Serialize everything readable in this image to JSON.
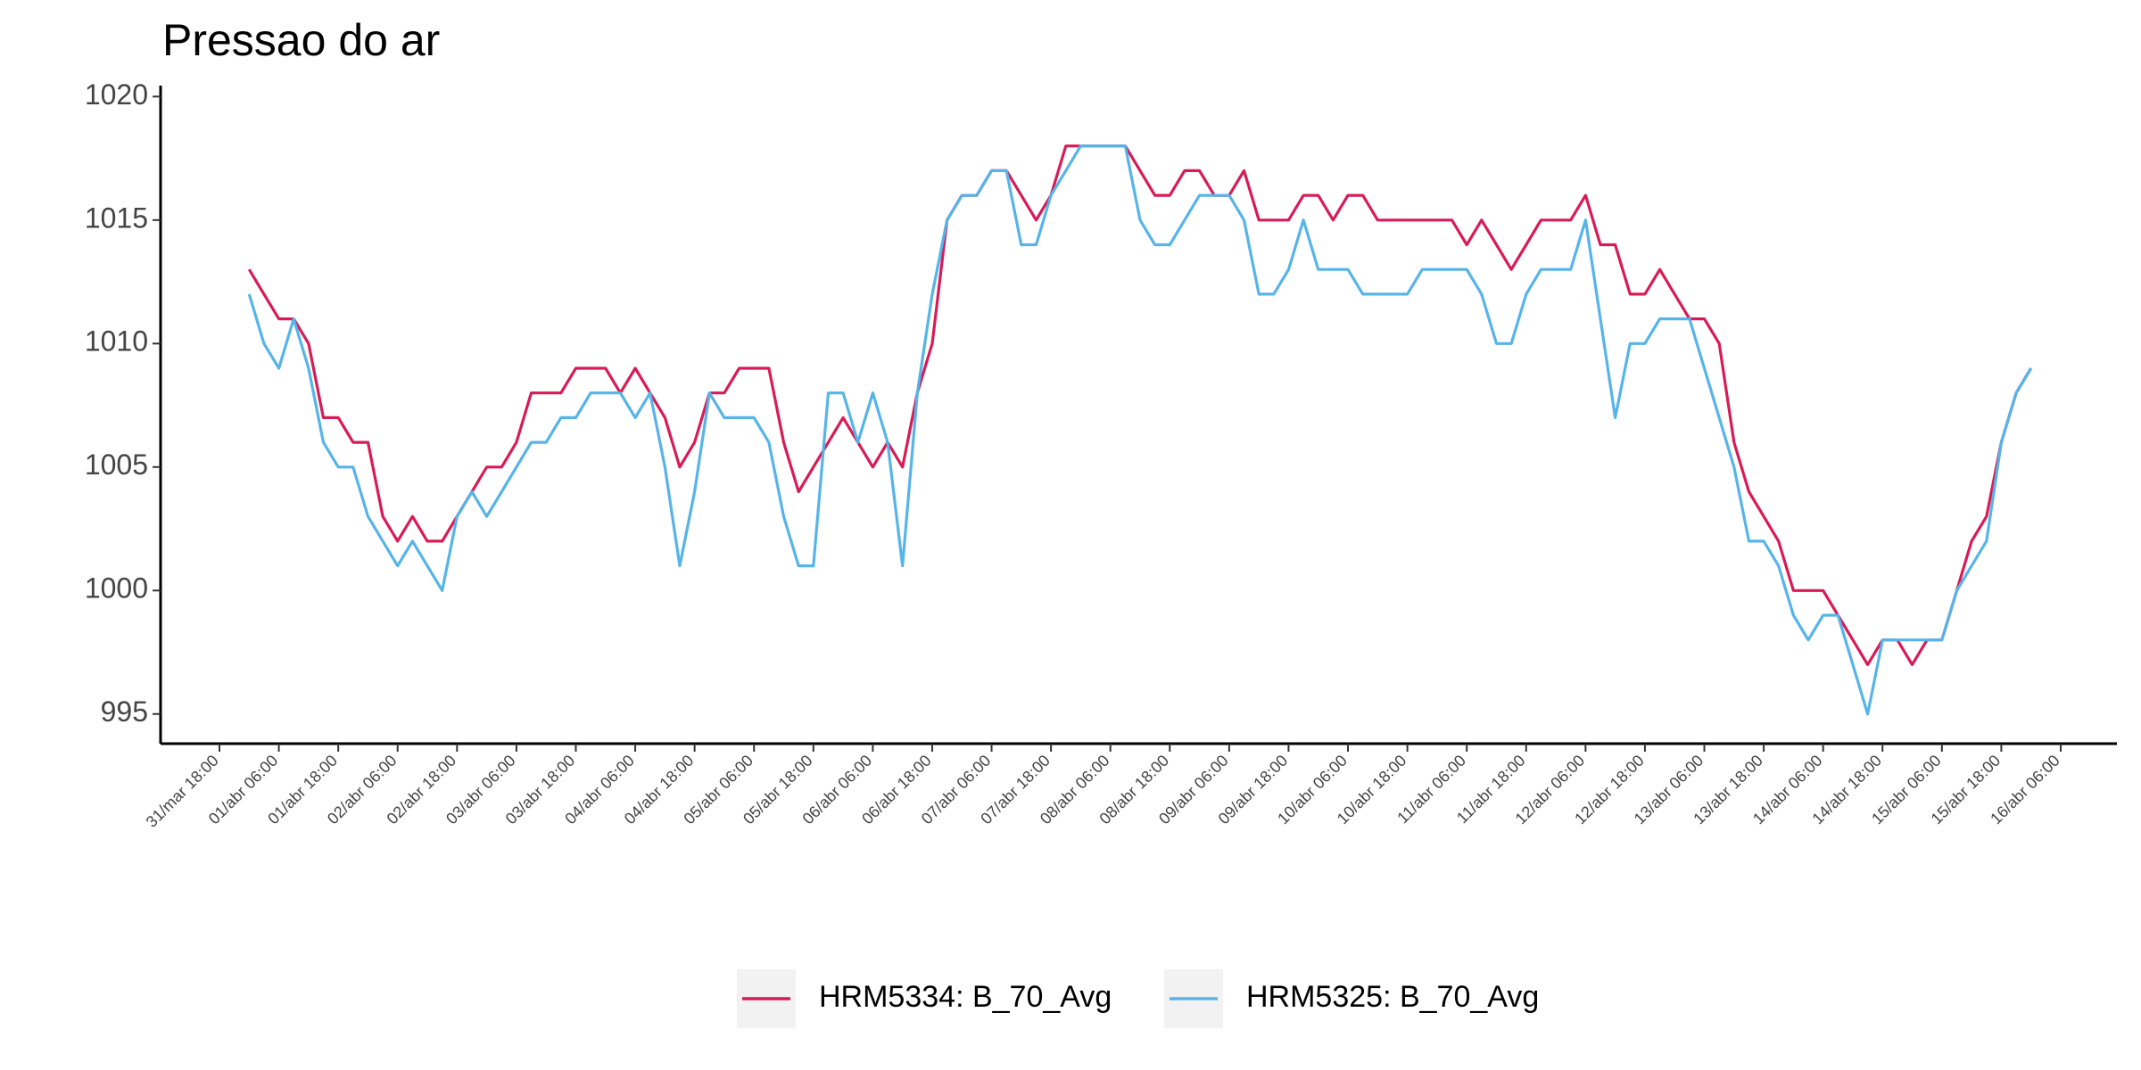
{
  "chart_data": {
    "type": "line",
    "title": "Pressao do ar",
    "x": [
      "31/mar 18:00",
      "31/mar 21:00",
      "01/abr 00:00",
      "01/abr 03:00",
      "01/abr 06:00",
      "01/abr 09:00",
      "01/abr 12:00",
      "01/abr 15:00",
      "01/abr 18:00",
      "01/abr 21:00",
      "02/abr 00:00",
      "02/abr 03:00",
      "02/abr 06:00",
      "02/abr 09:00",
      "02/abr 12:00",
      "02/abr 15:00",
      "02/abr 18:00",
      "02/abr 21:00",
      "03/abr 00:00",
      "03/abr 03:00",
      "03/abr 06:00",
      "03/abr 09:00",
      "03/abr 12:00",
      "03/abr 15:00",
      "03/abr 18:00",
      "03/abr 21:00",
      "04/abr 00:00",
      "04/abr 03:00",
      "04/abr 06:00",
      "04/abr 09:00",
      "04/abr 12:00",
      "04/abr 15:00",
      "04/abr 18:00",
      "04/abr 21:00",
      "05/abr 00:00",
      "05/abr 03:00",
      "05/abr 06:00",
      "05/abr 09:00",
      "05/abr 12:00",
      "05/abr 15:00",
      "05/abr 18:00",
      "05/abr 21:00",
      "06/abr 00:00",
      "06/abr 03:00",
      "06/abr 06:00",
      "06/abr 09:00",
      "06/abr 12:00",
      "06/abr 15:00",
      "06/abr 18:00",
      "06/abr 21:00",
      "07/abr 00:00",
      "07/abr 03:00",
      "07/abr 06:00",
      "07/abr 09:00",
      "07/abr 12:00",
      "07/abr 15:00",
      "07/abr 18:00",
      "07/abr 21:00",
      "08/abr 00:00",
      "08/abr 03:00",
      "08/abr 06:00",
      "08/abr 09:00",
      "08/abr 12:00",
      "08/abr 15:00",
      "08/abr 18:00",
      "08/abr 21:00",
      "09/abr 00:00",
      "09/abr 03:00",
      "09/abr 06:00",
      "09/abr 09:00",
      "09/abr 12:00",
      "09/abr 15:00",
      "09/abr 18:00",
      "09/abr 21:00",
      "10/abr 00:00",
      "10/abr 03:00",
      "10/abr 06:00",
      "10/abr 09:00",
      "10/abr 12:00",
      "10/abr 15:00",
      "10/abr 18:00",
      "10/abr 21:00",
      "11/abr 00:00",
      "11/abr 03:00",
      "11/abr 06:00",
      "11/abr 09:00",
      "11/abr 12:00",
      "11/abr 15:00",
      "11/abr 18:00",
      "11/abr 21:00",
      "12/abr 00:00",
      "12/abr 03:00",
      "12/abr 06:00",
      "12/abr 09:00",
      "12/abr 12:00",
      "12/abr 15:00",
      "12/abr 18:00",
      "12/abr 21:00",
      "13/abr 00:00",
      "13/abr 03:00",
      "13/abr 06:00",
      "13/abr 09:00",
      "13/abr 12:00",
      "13/abr 15:00",
      "13/abr 18:00",
      "13/abr 21:00",
      "14/abr 00:00",
      "14/abr 03:00",
      "14/abr 06:00",
      "14/abr 09:00",
      "14/abr 12:00",
      "14/abr 15:00",
      "14/abr 18:00",
      "14/abr 21:00",
      "15/abr 00:00",
      "15/abr 03:00",
      "15/abr 06:00",
      "15/abr 09:00",
      "15/abr 12:00",
      "15/abr 15:00",
      "15/abr 18:00",
      "15/abr 21:00",
      "16/abr 00:00",
      "16/abr 03:00",
      "16/abr 06:00"
    ],
    "series": [
      {
        "name": "HRM5334: B_70_Avg",
        "color": "#d81b56",
        "values": [
          null,
          null,
          1013,
          1012,
          1011,
          1011,
          1010,
          1007,
          1007,
          1006,
          1006,
          1003,
          1002,
          1003,
          1002,
          1002,
          1003,
          1004,
          1005,
          1005,
          1006,
          1008,
          1008,
          1008,
          1009,
          1009,
          1009,
          1008,
          1009,
          1008,
          1007,
          1005,
          1006,
          1008,
          1008,
          1009,
          1009,
          1009,
          1006,
          1004,
          1005,
          1006,
          1007,
          1006,
          1005,
          1006,
          1005,
          1008,
          1010,
          1015,
          1016,
          1016,
          1017,
          1017,
          1016,
          1015,
          1016,
          1018,
          1018,
          1018,
          1018,
          1018,
          1017,
          1016,
          1016,
          1017,
          1017,
          1016,
          1016,
          1017,
          1015,
          1015,
          1015,
          1016,
          1016,
          1015,
          1016,
          1016,
          1015,
          1015,
          1015,
          1015,
          1015,
          1015,
          1014,
          1015,
          1014,
          1013,
          1014,
          1015,
          1015,
          1015,
          1016,
          1014,
          1014,
          1012,
          1012,
          1013,
          1012,
          1011,
          1011,
          1010,
          1006,
          1004,
          1003,
          1002,
          1000,
          1000,
          1000,
          999,
          998,
          997,
          998,
          998,
          997,
          998,
          998,
          1000,
          1002,
          1003,
          1006,
          1008,
          1009,
          null,
          null
        ]
      },
      {
        "name": "HRM5325: B_70_Avg",
        "color": "#56b4e9",
        "values": [
          null,
          null,
          1012,
          1010,
          1009,
          1011,
          1009,
          1006,
          1005,
          1005,
          1003,
          1002,
          1001,
          1002,
          1001,
          1000,
          1003,
          1004,
          1003,
          1004,
          1005,
          1006,
          1006,
          1007,
          1007,
          1008,
          1008,
          1008,
          1007,
          1008,
          1005,
          1001,
          1004,
          1008,
          1007,
          1007,
          1007,
          1006,
          1003,
          1001,
          1001,
          1008,
          1008,
          1006,
          1008,
          1006,
          1001,
          1008,
          1012,
          1015,
          1016,
          1016,
          1017,
          1017,
          1014,
          1014,
          1016,
          1017,
          1018,
          1018,
          1018,
          1018,
          1015,
          1014,
          1014,
          1015,
          1016,
          1016,
          1016,
          1015,
          1012,
          1012,
          1013,
          1015,
          1013,
          1013,
          1013,
          1012,
          1012,
          1012,
          1012,
          1013,
          1013,
          1013,
          1013,
          1012,
          1010,
          1010,
          1012,
          1013,
          1013,
          1013,
          1015,
          1011,
          1007,
          1010,
          1010,
          1011,
          1011,
          1011,
          1009,
          1007,
          1005,
          1002,
          1002,
          1001,
          999,
          998,
          999,
          999,
          997,
          995,
          998,
          998,
          998,
          998,
          998,
          1000,
          1001,
          1002,
          1006,
          1008,
          1009,
          null,
          null
        ]
      }
    ],
    "ylim": [
      993.8,
      1020.3
    ],
    "yticks": [
      995,
      1000,
      1005,
      1010,
      1015,
      1020
    ],
    "xticks": [
      "31/mar 18:00",
      "01/abr 06:00",
      "01/abr 18:00",
      "02/abr 06:00",
      "02/abr 18:00",
      "03/abr 06:00",
      "03/abr 18:00",
      "04/abr 06:00",
      "04/abr 18:00",
      "05/abr 06:00",
      "05/abr 18:00",
      "06/abr 06:00",
      "06/abr 18:00",
      "07/abr 06:00",
      "07/abr 18:00",
      "08/abr 06:00",
      "08/abr 18:00",
      "09/abr 06:00",
      "09/abr 18:00",
      "10/abr 06:00",
      "10/abr 18:00",
      "11/abr 06:00",
      "11/abr 18:00",
      "12/abr 06:00",
      "12/abr 18:00",
      "13/abr 06:00",
      "13/abr 18:00",
      "14/abr 06:00",
      "14/abr 18:00",
      "15/abr 06:00",
      "15/abr 18:00",
      "16/abr 06:00"
    ],
    "grid": false,
    "legend": "bottom"
  }
}
